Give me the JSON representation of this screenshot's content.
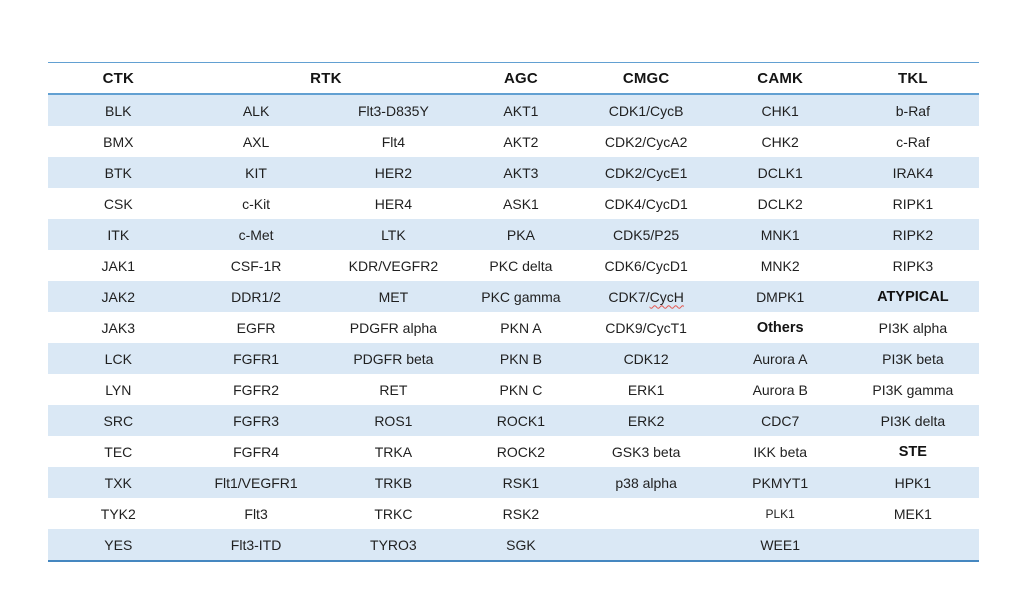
{
  "colors": {
    "band_fill": "#dae8f5",
    "header_line": "#62a0d2",
    "bottom_line": "#4587c0",
    "spellcheck_underline": "#e4574f",
    "text": "#1f1f1f"
  },
  "table": {
    "header": [
      {
        "label": "CTK",
        "span": 1
      },
      {
        "label": "RTK",
        "span": 2
      },
      {
        "label": "AGC",
        "span": 1
      },
      {
        "label": "CMGC",
        "span": 1
      },
      {
        "label": "CAMK",
        "span": 1
      },
      {
        "label": "TKL",
        "span": 1
      }
    ],
    "rows": [
      [
        "BLK",
        "ALK",
        "Flt3-D835Y",
        "AKT1",
        "CDK1/CycB",
        "CHK1",
        "b-Raf"
      ],
      [
        "BMX",
        "AXL",
        "Flt4",
        "AKT2",
        "CDK2/CycA2",
        "CHK2",
        "c-Raf"
      ],
      [
        "BTK",
        "KIT",
        "HER2",
        "AKT3",
        "CDK2/CycE1",
        "DCLK1",
        "IRAK4"
      ],
      [
        "CSK",
        "c-Kit",
        "HER4",
        "ASK1",
        "CDK4/CycD1",
        "DCLK2",
        "RIPK1"
      ],
      [
        "ITK",
        "c-Met",
        "LTK",
        "PKA",
        "CDK5/P25",
        "MNK1",
        "RIPK2"
      ],
      [
        "JAK1",
        "CSF-1R",
        "KDR/VEGFR2",
        "PKC delta",
        "CDK6/CycD1",
        "MNK2",
        "RIPK3"
      ],
      [
        "JAK2",
        "DDR1/2",
        "MET",
        "PKC gamma",
        {
          "text": "CDK7/CycH",
          "spellcheck": "CycH"
        },
        "DMPK1",
        {
          "text": "ATYPICAL",
          "bold": true
        }
      ],
      [
        "JAK3",
        "EGFR",
        "PDGFR alpha",
        "PKN A",
        "CDK9/CycT1",
        {
          "text": "Others",
          "bold": true
        },
        "PI3K alpha"
      ],
      [
        "LCK",
        "FGFR1",
        "PDGFR beta",
        "PKN B",
        "CDK12",
        "Aurora A",
        "PI3K beta"
      ],
      [
        "LYN",
        "FGFR2",
        "RET",
        "PKN C",
        "ERK1",
        "Aurora B",
        "PI3K gamma"
      ],
      [
        "SRC",
        "FGFR3",
        "ROS1",
        "ROCK1",
        "ERK2",
        "CDC7",
        "PI3K delta"
      ],
      [
        "TEC",
        "FGFR4",
        "TRKA",
        "ROCK2",
        "GSK3 beta",
        "IKK beta",
        {
          "text": "STE",
          "bold": true
        }
      ],
      [
        "TXK",
        "Flt1/VEGFR1",
        "TRKB",
        "RSK1",
        "p38 alpha",
        "PKMYT1",
        "HPK1"
      ],
      [
        "TYK2",
        "Flt3",
        "TRKC",
        "RSK2",
        "",
        {
          "text": "PLK1",
          "small": true
        },
        "MEK1"
      ],
      [
        "YES",
        "Flt3-ITD",
        "TYRO3",
        "SGK",
        "",
        "WEE1",
        ""
      ]
    ]
  }
}
